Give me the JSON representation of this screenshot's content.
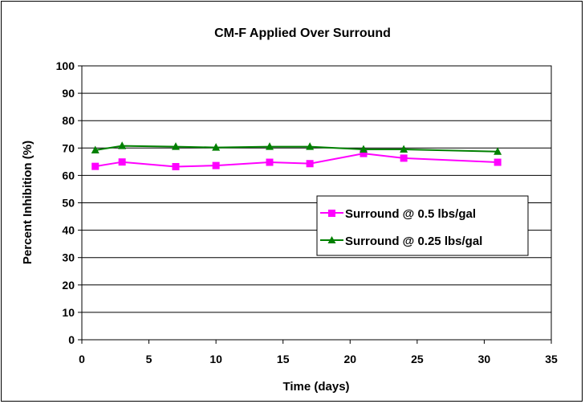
{
  "chart_data": {
    "type": "line",
    "title": "CM-F Applied Over Surround",
    "xlabel": "Time (days)",
    "ylabel": "Percent Inhibition (%)",
    "xlim": [
      0,
      35
    ],
    "ylim": [
      0,
      100
    ],
    "xticks": [
      0,
      5,
      10,
      15,
      20,
      25,
      30,
      35
    ],
    "yticks": [
      0,
      10,
      20,
      30,
      40,
      50,
      60,
      70,
      80,
      90,
      100
    ],
    "grid": "horizontal",
    "legend_position": "right-center",
    "series": [
      {
        "name": "Surround @ 0.5 lbs/gal",
        "color": "#ff00ff",
        "marker": "square",
        "x": [
          1,
          3,
          7,
          10,
          14,
          17,
          21,
          24,
          31
        ],
        "y": [
          63.3,
          64.9,
          63.2,
          63.6,
          64.8,
          64.3,
          68.0,
          66.3,
          64.8
        ]
      },
      {
        "name": "Surround @ 0.25 lbs/gal",
        "color": "#008000",
        "marker": "triangle",
        "x": [
          1,
          3,
          7,
          10,
          14,
          17,
          21,
          24,
          31
        ],
        "y": [
          69.2,
          70.8,
          70.5,
          70.2,
          70.5,
          70.5,
          69.5,
          69.5,
          68.7
        ]
      }
    ]
  }
}
